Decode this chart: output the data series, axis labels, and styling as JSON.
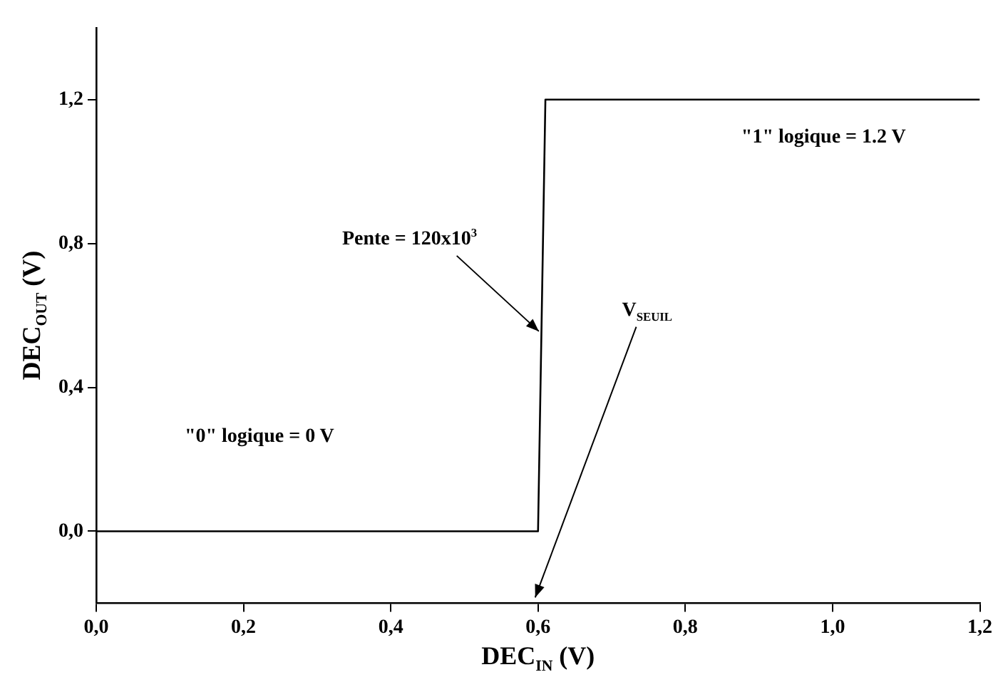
{
  "chart_data": {
    "type": "line",
    "xlabel": "DEC$_{IN}$ (V)",
    "ylabel": "DEC$_{OUT}$ (V)",
    "x": [
      0,
      0.6,
      0.61,
      1.2
    ],
    "series": [
      {
        "color": "#000000",
        "values": [
          0,
          0,
          1.2,
          1.2
        ]
      }
    ],
    "xlim": [
      0,
      1.2
    ],
    "xticks": [
      {
        "value": 0,
        "label": "0,0"
      },
      {
        "value": 0.2,
        "label": "0,2"
      },
      {
        "value": 0.4,
        "label": "0,4"
      },
      {
        "value": 0.6,
        "label": "0,6"
      },
      {
        "value": 0.8,
        "label": "0,8"
      },
      {
        "value": 1.0,
        "label": "1,0"
      },
      {
        "value": 1.2,
        "label": "1,2"
      }
    ],
    "ylim": [
      -0.2,
      1.4
    ],
    "yticks": [
      {
        "value": 0,
        "label": "0,0"
      },
      {
        "value": 0.4,
        "label": "0,4"
      },
      {
        "value": 0.8,
        "label": "0,8"
      },
      {
        "value": 1.2,
        "label": "1,2"
      }
    ],
    "annotations": [
      {
        "text": "Pente = 120x10$^{3}$",
        "x": 0.605,
        "y": 0.54
      },
      "V$_{SEUIL}$",
      "\"1\" logique = 1.2 V",
      "\"0\" logique = 0 V"
    ],
    "grid": false,
    "legend": false,
    "marker": "none",
    "line_style": "solid"
  }
}
